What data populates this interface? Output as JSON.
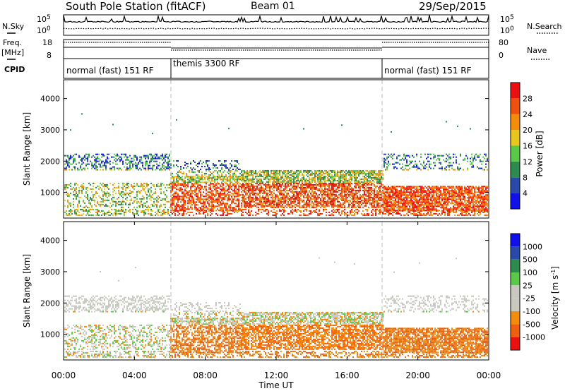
{
  "header": {
    "station": "South Pole Station (fitACF)",
    "beam": "Beam 01",
    "date": "29/Sep/2015"
  },
  "top_panel": {
    "nsky_label": "N.Sky",
    "nsearch_label": "N.Search",
    "exp_hi": "10^5",
    "exp_lo": "10^0",
    "freq_label": "Freq.",
    "freq_unit": "[MHz]",
    "freq_ticks": [
      "18",
      "8"
    ],
    "nave_ticks": [
      "80",
      "0"
    ],
    "nave_label": "Nave",
    "cpid_label": "CPID",
    "cpid_segments": [
      {
        "label": "normal (fast) 151 RF",
        "start_h": 0,
        "end_h": 6
      },
      {
        "label": "themis 3300 RF",
        "start_h": 6,
        "end_h": 18
      },
      {
        "label": "normal (fast) 151 RF",
        "start_h": 18,
        "end_h": 24
      }
    ]
  },
  "colors": {
    "power": [
      "#1010e8",
      "#2a4aa8",
      "#2e8a4e",
      "#5cc84a",
      "#e8c81e",
      "#f28c0a",
      "#ee5010",
      "#e81010"
    ],
    "velocity": [
      "#1010e8",
      "#2a4aa8",
      "#2e8a4e",
      "#5cc84a",
      "#c8c8c0",
      "#c8c8c0",
      "#f28c0a",
      "#ee6010",
      "#e81010"
    ]
  },
  "chart_data": [
    {
      "type": "heatmap",
      "name": "power",
      "ylabel": "Slant Range [km]",
      "ylim": [
        180,
        4600
      ],
      "xlim": [
        0,
        24
      ],
      "y_ticks": [
        "1000",
        "2000",
        "3000",
        "4000"
      ],
      "colorbar": {
        "label": "Power [dB]",
        "ticks": [
          "4",
          "8",
          "12",
          "16",
          "20",
          "24",
          "28"
        ],
        "range": [
          0,
          30
        ]
      },
      "vlines_h": [
        6,
        18
      ]
    },
    {
      "type": "heatmap",
      "name": "velocity",
      "ylabel": "Slant Range [km]",
      "ylim": [
        180,
        4600
      ],
      "xlim": [
        0,
        24
      ],
      "y_ticks": [
        "1000",
        "2000",
        "3000",
        "4000"
      ],
      "x_ticks": [
        "00:00",
        "04:00",
        "08:00",
        "12:00",
        "16:00",
        "20:00",
        "00:00"
      ],
      "xlabel": "Time UT",
      "colorbar": {
        "label": "Velocity [m s",
        "label_sup": "-1",
        "label_end": "]",
        "ticks": [
          "1000",
          "500",
          "100",
          "25",
          "-25",
          "-100",
          "-500",
          "-1000"
        ]
      },
      "vlines_h": [
        6,
        18
      ]
    }
  ]
}
